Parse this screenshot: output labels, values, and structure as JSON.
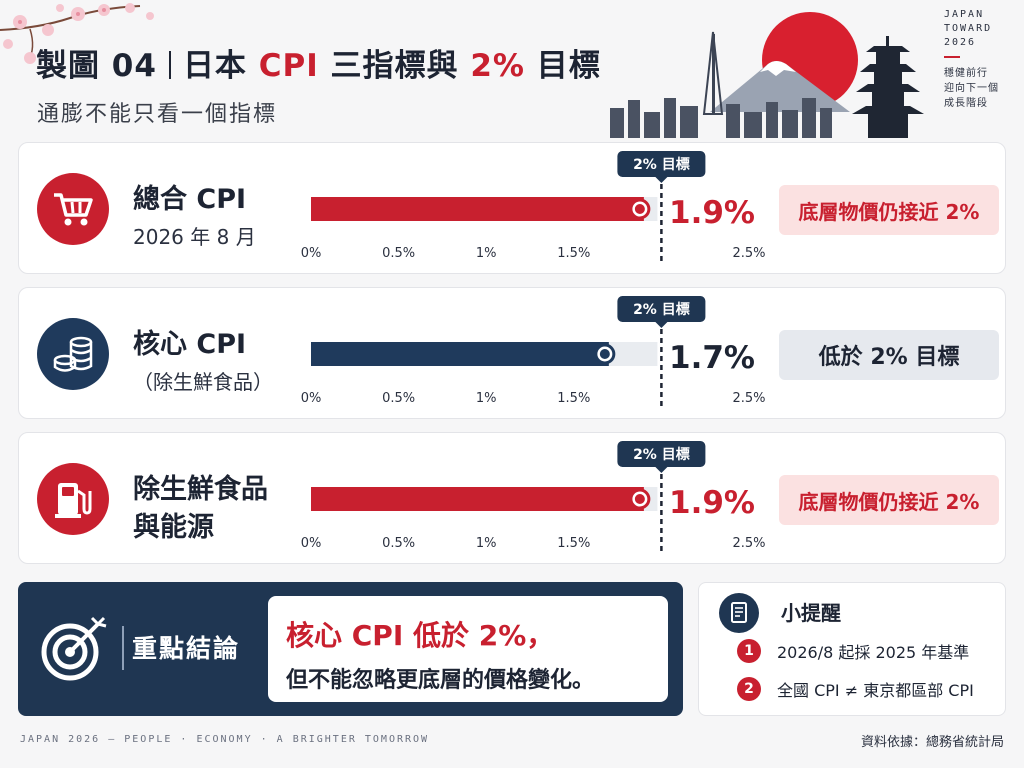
{
  "header": {
    "figure_no": "製圖 04",
    "title_part1": "日本 ",
    "title_cpi": "CPI",
    "title_part2": " 三指標與 ",
    "title_pct": "2%",
    "title_part3": " 目標",
    "subtitle": "通膨不能只看一個指標"
  },
  "brand": {
    "line1": "JAPAN",
    "line2": "TOWARD",
    "line3": "2026",
    "tag1": "穩健前行",
    "tag2": "迎向下一個",
    "tag3": "成長階段"
  },
  "colors": {
    "accent_red": "#c8202f",
    "navy": "#1f3a5c",
    "track": "#e9ecf0"
  },
  "chart_data": {
    "type": "bar",
    "orientation": "horizontal",
    "xlim": [
      0,
      2.5
    ],
    "ticks": [
      "0%",
      "0.5%",
      "1%",
      "1.5%",
      "2.5%"
    ],
    "tick_values": [
      0,
      0.5,
      1,
      1.5,
      2.5
    ],
    "target": {
      "value": 2.0,
      "label": "2% 目標"
    },
    "categories": [
      "總合 CPI",
      "核心 CPI",
      "除生鮮食品與能源"
    ],
    "values": [
      1.9,
      1.7,
      1.9
    ]
  },
  "rows": [
    {
      "name_line1": "總合 CPI",
      "name_line2": "2026 年 8 月",
      "value_label": "1.9%",
      "color": "red",
      "icon": "shopping-cart-icon",
      "note": "底層物價仍接近 2%"
    },
    {
      "name_line1": "核心 CPI",
      "name_line2": "（除生鮮食品）",
      "value_label": "1.7%",
      "color": "navy",
      "icon": "coin-stack-icon",
      "note": "低於 2% 目標"
    },
    {
      "name_line1": "除生鮮食品",
      "name_line2": "與能源",
      "value_label": "1.9%",
      "color": "red",
      "icon": "fuel-pump-icon",
      "note": "底層物價仍接近 2%"
    }
  ],
  "conclusion": {
    "label": "重點結論",
    "line1": "核心 CPI 低於 2%，",
    "line2": "但不能忽略更底層的價格變化。"
  },
  "tips": {
    "title": "小提醒",
    "items": [
      {
        "num": "1",
        "text": "2026/8 起採 2025 年基準"
      },
      {
        "num": "2",
        "text": "全國 CPI ≠ 東京都區部 CPI"
      }
    ]
  },
  "footer": {
    "tagline": "JAPAN 2026 — PEOPLE · ECONOMY · A BRIGHTER TOMORROW",
    "source": "資料依據：總務省統計局"
  }
}
